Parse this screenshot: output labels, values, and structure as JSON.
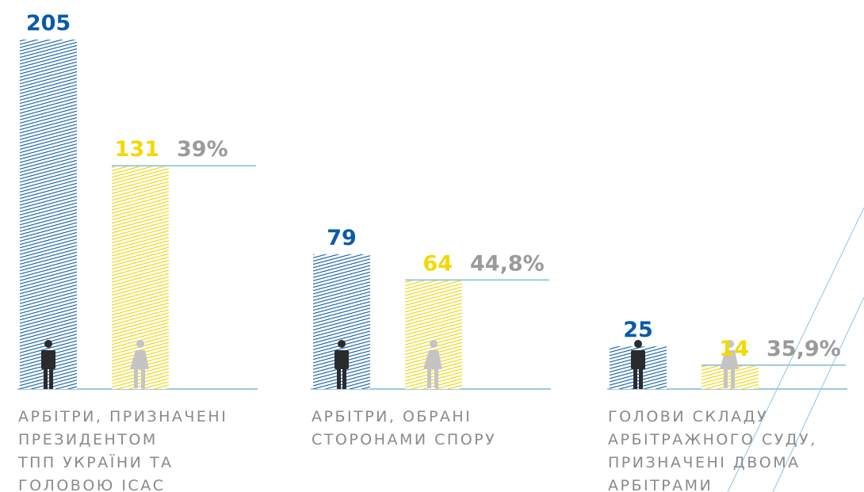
{
  "chart_data": {
    "type": "bar",
    "categories": [
      [
        "АРБІТРИ, ПРИЗНАЧЕНІ",
        "ПРЕЗИДЕНТОМ",
        "ТПП УКРАЇНИ ТА",
        "ГОЛОВОЮ ІСАС"
      ],
      [
        "АРБІТРИ, ОБРАНІ",
        "СТОРОНАМИ СПОРУ"
      ],
      [
        "ГОЛОВИ СКЛАДУ",
        "АРБІТРАЖНОГО СУДУ,",
        "ПРИЗНАЧЕНІ ДВОМА",
        "АРБІТРАМИ"
      ]
    ],
    "series": [
      {
        "color": "#0b5aa8",
        "values": [
          205,
          79,
          25
        ]
      },
      {
        "color": "#f5d800",
        "values": [
          131,
          64,
          14
        ]
      }
    ],
    "shares": {
      "color": "#9a9a9a",
      "values": [
        39,
        44.8,
        35.9
      ],
      "value_labels": [
        "39%",
        "44,8%",
        "35,9%"
      ]
    }
  }
}
